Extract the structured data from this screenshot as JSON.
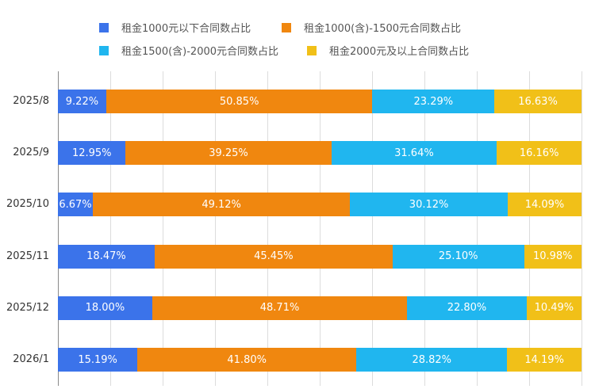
{
  "chart_data": {
    "type": "bar",
    "orientation": "horizontal",
    "stacked": true,
    "percent": true,
    "title": "",
    "xlabel": "",
    "ylabel": "",
    "xlim": [
      0,
      100
    ],
    "grid": true,
    "legend_position": "top",
    "categories": [
      "2025/8",
      "2025/9",
      "2025/10",
      "2025/11",
      "2025/12",
      "2026/1"
    ],
    "series": [
      {
        "name": "租金1000元以下合同数占比",
        "color": "#3b73ea",
        "values": [
          9.22,
          12.95,
          6.67,
          18.47,
          18.0,
          15.19
        ],
        "labels": [
          "9.22%",
          "12.95%",
          "6.67%",
          "18.47%",
          "18.00%",
          "15.19%"
        ]
      },
      {
        "name": "租金1000(含)-1500元合同数占比",
        "color": "#f0870f",
        "values": [
          50.85,
          39.25,
          49.12,
          45.45,
          48.71,
          41.8
        ],
        "labels": [
          "50.85%",
          "39.25%",
          "49.12%",
          "45.45%",
          "48.71%",
          "41.80%"
        ]
      },
      {
        "name": "租金1500(含)-2000元合同数占比",
        "color": "#20b6ef",
        "values": [
          23.29,
          31.64,
          30.12,
          25.1,
          22.8,
          28.82
        ],
        "labels": [
          "23.29%",
          "31.64%",
          "30.12%",
          "25.10%",
          "22.80%",
          "28.82%"
        ]
      },
      {
        "name": "租金2000元及以上合同数占比",
        "color": "#f1c018",
        "values": [
          16.63,
          16.16,
          14.09,
          10.98,
          10.49,
          14.19
        ],
        "labels": [
          "16.63%",
          "16.16%",
          "14.09%",
          "10.98%",
          "10.49%",
          "14.19%"
        ]
      }
    ]
  }
}
